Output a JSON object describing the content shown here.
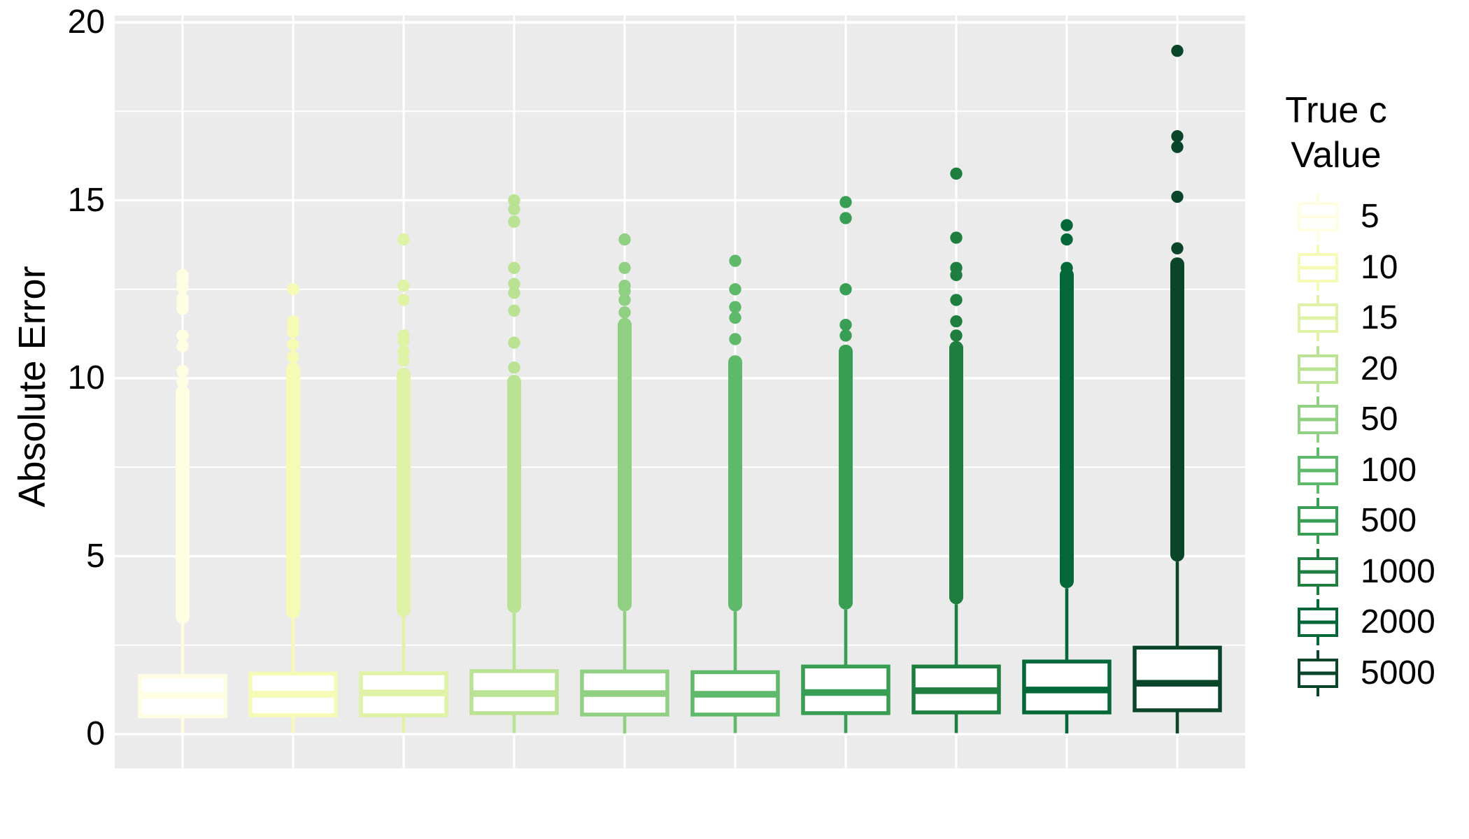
{
  "figure": {
    "background": "#ffffff"
  },
  "panel": {
    "bg": "#ebebeb",
    "grid_color": "#ffffff"
  },
  "y_axis": {
    "label": "Absolute Error",
    "tick_labels": [
      "0",
      "5",
      "10",
      "15",
      "20"
    ],
    "tick_values": [
      0,
      5,
      10,
      15,
      20
    ],
    "minor_tick_values": [
      2.5,
      7.5,
      12.5,
      17.5
    ]
  },
  "legend": {
    "title_lines": [
      "True c",
      "Value"
    ],
    "entries": [
      {
        "label": "5",
        "color": "#fffee3"
      },
      {
        "label": "10",
        "color": "#f5fab5"
      },
      {
        "label": "15",
        "color": "#dff2a6"
      },
      {
        "label": "20",
        "color": "#b9e292"
      },
      {
        "label": "50",
        "color": "#8fd083"
      },
      {
        "label": "100",
        "color": "#5fb96b"
      },
      {
        "label": "500",
        "color": "#379e54"
      },
      {
        "label": "1000",
        "color": "#1d7e40"
      },
      {
        "label": "2000",
        "color": "#026838"
      },
      {
        "label": "5000",
        "color": "#0a4529"
      }
    ]
  },
  "chart_data": {
    "type": "boxplot",
    "title": "",
    "xlabel": "",
    "ylabel": "Absolute Error",
    "ylim": [
      -0.96,
      20.2
    ],
    "grid": true,
    "legend_position": "right",
    "legend_title": "True c Value",
    "categories": [
      "5",
      "10",
      "15",
      "20",
      "50",
      "100",
      "500",
      "1000",
      "2000",
      "5000"
    ],
    "series": [
      {
        "category": "5",
        "color": "#fffee3",
        "whisker_low": 0.02,
        "q1": 0.5,
        "median": 1.09,
        "q3": 1.63,
        "whisker_high": 3.1,
        "dense_outliers_to": 9.6,
        "outliers": [
          9.9,
          10.2,
          10.9,
          11.2,
          11.95,
          12.1,
          12.25,
          12.55,
          12.75,
          12.9
        ],
        "max": 12.9
      },
      {
        "category": "10",
        "color": "#f5fab5",
        "whisker_low": 0.03,
        "q1": 0.53,
        "median": 1.12,
        "q3": 1.7,
        "whisker_high": 3.25,
        "dense_outliers_to": 10.25,
        "outliers": [
          10.6,
          10.95,
          11.3,
          11.45,
          11.6,
          12.5
        ],
        "max": 12.5
      },
      {
        "category": "15",
        "color": "#dff2a6",
        "whisker_low": 0.03,
        "q1": 0.53,
        "median": 1.16,
        "q3": 1.71,
        "whisker_high": 3.3,
        "dense_outliers_to": 10.1,
        "outliers": [
          10.5,
          10.75,
          11.05,
          11.2,
          12.2,
          12.6,
          13.9
        ],
        "max": 13.9
      },
      {
        "category": "20",
        "color": "#b9e292",
        "whisker_low": 0.03,
        "q1": 0.59,
        "median": 1.14,
        "q3": 1.77,
        "whisker_high": 3.4,
        "dense_outliers_to": 9.9,
        "outliers": [
          10.3,
          11.0,
          11.9,
          12.4,
          12.65,
          13.1,
          14.4,
          14.75,
          15.0
        ],
        "max": 15.0
      },
      {
        "category": "50",
        "color": "#8fd083",
        "whisker_low": 0.02,
        "q1": 0.55,
        "median": 1.14,
        "q3": 1.76,
        "whisker_high": 3.45,
        "dense_outliers_to": 11.5,
        "outliers": [
          11.85,
          12.2,
          12.45,
          12.6,
          13.1,
          13.9
        ],
        "max": 13.9
      },
      {
        "category": "100",
        "color": "#5fb96b",
        "whisker_low": 0.03,
        "q1": 0.55,
        "median": 1.12,
        "q3": 1.74,
        "whisker_high": 3.45,
        "dense_outliers_to": 10.45,
        "outliers": [
          11.1,
          11.7,
          12.0,
          12.5,
          13.3
        ],
        "max": 13.3
      },
      {
        "category": "500",
        "color": "#379e54",
        "whisker_low": 0.03,
        "q1": 0.59,
        "median": 1.17,
        "q3": 1.9,
        "whisker_high": 3.5,
        "dense_outliers_to": 10.75,
        "outliers": [
          11.2,
          11.5,
          12.5,
          14.5,
          14.95
        ],
        "max": 14.95
      },
      {
        "category": "1000",
        "color": "#1d7e40",
        "whisker_low": 0.03,
        "q1": 0.61,
        "median": 1.22,
        "q3": 1.9,
        "whisker_high": 3.65,
        "dense_outliers_to": 10.85,
        "outliers": [
          11.2,
          11.6,
          12.2,
          12.9,
          13.1,
          13.95,
          15.75
        ],
        "max": 15.75
      },
      {
        "category": "2000",
        "color": "#026838",
        "whisker_low": 0.02,
        "q1": 0.61,
        "median": 1.24,
        "q3": 2.04,
        "whisker_high": 4.1,
        "dense_outliers_to": 12.9,
        "outliers": [
          13.1,
          13.9,
          14.3
        ],
        "max": 14.3
      },
      {
        "category": "5000",
        "color": "#0a4529",
        "whisker_low": 0.02,
        "q1": 0.67,
        "median": 1.43,
        "q3": 2.43,
        "whisker_high": 4.85,
        "dense_outliers_to": 13.2,
        "outliers": [
          13.65,
          15.1,
          16.5,
          16.8,
          19.2
        ],
        "max": 19.2
      }
    ]
  }
}
